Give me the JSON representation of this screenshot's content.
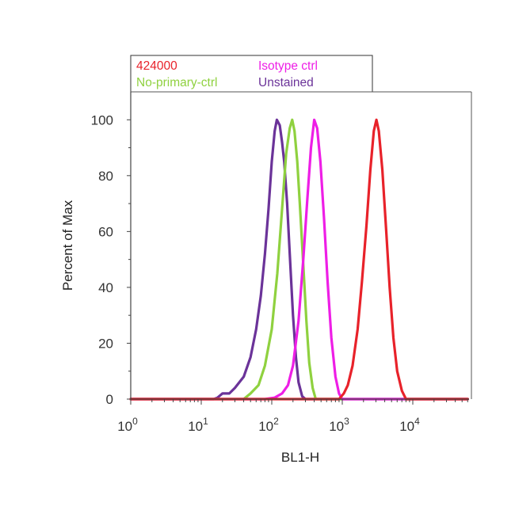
{
  "chart_data": {
    "type": "line",
    "title": "",
    "xlabel": "BL1-H",
    "ylabel": "Percent of Max",
    "x_scale": "log",
    "xlim": [
      1,
      60000
    ],
    "ylim": [
      0,
      110
    ],
    "x_ticks": [
      {
        "value": 1,
        "base": "10",
        "exp": "0"
      },
      {
        "value": 10,
        "base": "10",
        "exp": "1"
      },
      {
        "value": 100,
        "base": "10",
        "exp": "2"
      },
      {
        "value": 1000,
        "base": "10",
        "exp": "3"
      },
      {
        "value": 10000,
        "base": "10",
        "exp": "4"
      }
    ],
    "y_ticks": [
      0,
      20,
      40,
      60,
      80,
      100
    ],
    "grid": false,
    "legend": {
      "position": "top",
      "entries": [
        {
          "name": "424000",
          "color": "#e8222a"
        },
        {
          "name": "Isotype ctrl",
          "color": "#ee1ee6"
        },
        {
          "name": "No-primary-ctrl",
          "color": "#8fd13f"
        },
        {
          "name": "Unstained",
          "color": "#6b3399"
        }
      ]
    },
    "series": [
      {
        "name": "Unstained",
        "color": "#6b3399",
        "points": [
          [
            1,
            0
          ],
          [
            15,
            0
          ],
          [
            17,
            0.5
          ],
          [
            20,
            2
          ],
          [
            25,
            2
          ],
          [
            30,
            4
          ],
          [
            40,
            8
          ],
          [
            50,
            15
          ],
          [
            60,
            25
          ],
          [
            70,
            37
          ],
          [
            80,
            52
          ],
          [
            90,
            68
          ],
          [
            100,
            85
          ],
          [
            110,
            96
          ],
          [
            118,
            100
          ],
          [
            130,
            98
          ],
          [
            140,
            92
          ],
          [
            150,
            85
          ],
          [
            165,
            70
          ],
          [
            180,
            52
          ],
          [
            200,
            30
          ],
          [
            220,
            15
          ],
          [
            240,
            6
          ],
          [
            270,
            1
          ],
          [
            300,
            0
          ],
          [
            60000,
            0
          ]
        ]
      },
      {
        "name": "No-primary-ctrl",
        "color": "#8fd13f",
        "points": [
          [
            1,
            0
          ],
          [
            40,
            0
          ],
          [
            50,
            2
          ],
          [
            65,
            5
          ],
          [
            80,
            12
          ],
          [
            100,
            25
          ],
          [
            120,
            45
          ],
          [
            140,
            68
          ],
          [
            160,
            88
          ],
          [
            180,
            97
          ],
          [
            195,
            100
          ],
          [
            210,
            96
          ],
          [
            230,
            85
          ],
          [
            250,
            70
          ],
          [
            280,
            48
          ],
          [
            310,
            28
          ],
          [
            340,
            13
          ],
          [
            380,
            4
          ],
          [
            420,
            0
          ],
          [
            60000,
            0
          ]
        ]
      },
      {
        "name": "Isotype ctrl",
        "color": "#ee1ee6",
        "points": [
          [
            1,
            0
          ],
          [
            80,
            0
          ],
          [
            110,
            0.5
          ],
          [
            140,
            2
          ],
          [
            170,
            5
          ],
          [
            200,
            12
          ],
          [
            240,
            28
          ],
          [
            280,
            50
          ],
          [
            320,
            72
          ],
          [
            360,
            90
          ],
          [
            400,
            100
          ],
          [
            440,
            97
          ],
          [
            490,
            85
          ],
          [
            550,
            65
          ],
          [
            620,
            42
          ],
          [
            700,
            22
          ],
          [
            800,
            8
          ],
          [
            900,
            2
          ],
          [
            1000,
            0
          ],
          [
            60000,
            0
          ]
        ]
      },
      {
        "name": "424000",
        "color": "#e8222a",
        "points": [
          [
            1,
            0
          ],
          [
            900,
            0
          ],
          [
            1050,
            2
          ],
          [
            1200,
            5
          ],
          [
            1400,
            12
          ],
          [
            1650,
            25
          ],
          [
            1900,
            42
          ],
          [
            2200,
            62
          ],
          [
            2500,
            82
          ],
          [
            2800,
            96
          ],
          [
            3050,
            100
          ],
          [
            3300,
            96
          ],
          [
            3700,
            82
          ],
          [
            4200,
            60
          ],
          [
            4700,
            40
          ],
          [
            5300,
            22
          ],
          [
            6000,
            10
          ],
          [
            7000,
            3
          ],
          [
            8000,
            0
          ],
          [
            60000,
            0
          ]
        ]
      }
    ]
  }
}
